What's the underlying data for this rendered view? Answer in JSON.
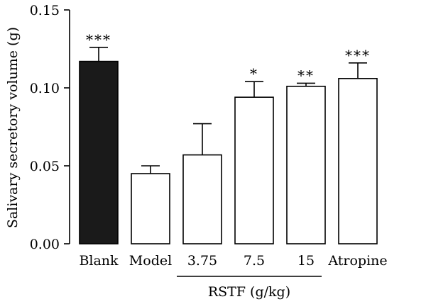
{
  "chart_data": {
    "type": "bar",
    "ylabel": "Salivary secretory volume (g)",
    "ylim": [
      0,
      0.15
    ],
    "yticks": [
      "0.00",
      "0.05",
      "0.10",
      "0.15"
    ],
    "grid": false,
    "categories": [
      "Blank",
      "Model",
      "3.75",
      "7.5",
      "15",
      "Atropine"
    ],
    "values": [
      0.117,
      0.045,
      0.057,
      0.094,
      0.101,
      0.106
    ],
    "errors": [
      0.009,
      0.005,
      0.02,
      0.01,
      0.002,
      0.01
    ],
    "significance": [
      "***",
      "",
      "",
      "*",
      "**",
      "***"
    ],
    "bar_colors": [
      "#1a1a1a",
      "#ffffff",
      "#ffffff",
      "#ffffff",
      "#ffffff",
      "#ffffff"
    ],
    "group_label": "RSTF (g/kg)",
    "group_categories": [
      "3.75",
      "7.5",
      "15"
    ]
  }
}
